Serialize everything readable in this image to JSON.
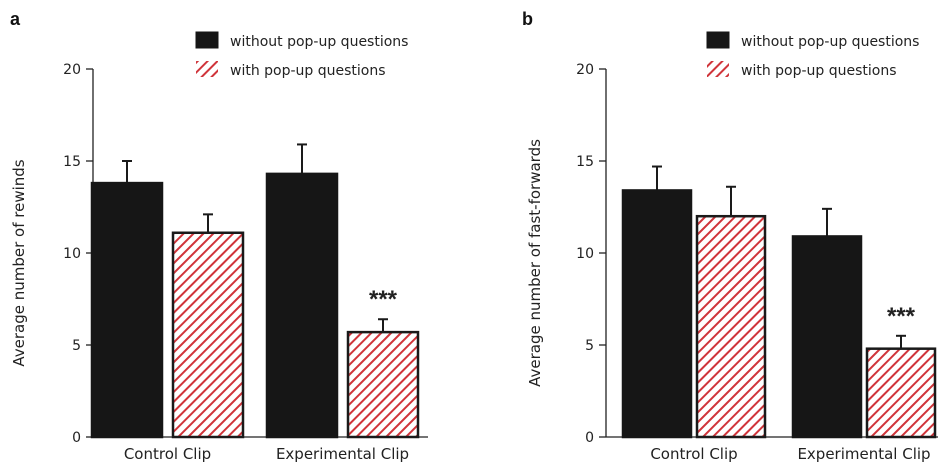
{
  "colors": {
    "dark_bar": "#161616",
    "hatch_red": "#d0343a",
    "hatch_bg": "#ffffff"
  },
  "chart_data": [
    {
      "panel": "a",
      "type": "bar",
      "ylabel": "Average number of rewinds",
      "ylim": [
        0,
        20
      ],
      "yticks": [
        0,
        5,
        10,
        15,
        20
      ],
      "categories": [
        "Control Clip",
        "Experimental Clip"
      ],
      "legend_position": "top-right",
      "series": [
        {
          "name": "without pop-up questions",
          "values": [
            13.8,
            14.3
          ],
          "errors": [
            1.2,
            1.6
          ],
          "fill": "solid"
        },
        {
          "name": "with pop-up questions",
          "values": [
            11.1,
            5.7
          ],
          "errors": [
            1.0,
            0.7
          ],
          "fill": "hatched"
        }
      ],
      "annotations": [
        {
          "text": "***",
          "category": "Experimental Clip",
          "series": "with pop-up questions"
        }
      ]
    },
    {
      "panel": "b",
      "type": "bar",
      "ylabel": "Average number of fast-forwards",
      "ylim": [
        0,
        20
      ],
      "yticks": [
        0,
        5,
        10,
        15,
        20
      ],
      "categories": [
        "Control Clip",
        "Experimental Clip"
      ],
      "legend_position": "top-right",
      "series": [
        {
          "name": "without pop-up questions",
          "values": [
            13.4,
            10.9
          ],
          "errors": [
            1.3,
            1.5
          ],
          "fill": "solid"
        },
        {
          "name": "with pop-up questions",
          "values": [
            12.0,
            4.8
          ],
          "errors": [
            1.6,
            0.7
          ],
          "fill": "hatched"
        }
      ],
      "annotations": [
        {
          "text": "***",
          "category": "Experimental Clip",
          "series": "with pop-up questions"
        }
      ]
    }
  ]
}
